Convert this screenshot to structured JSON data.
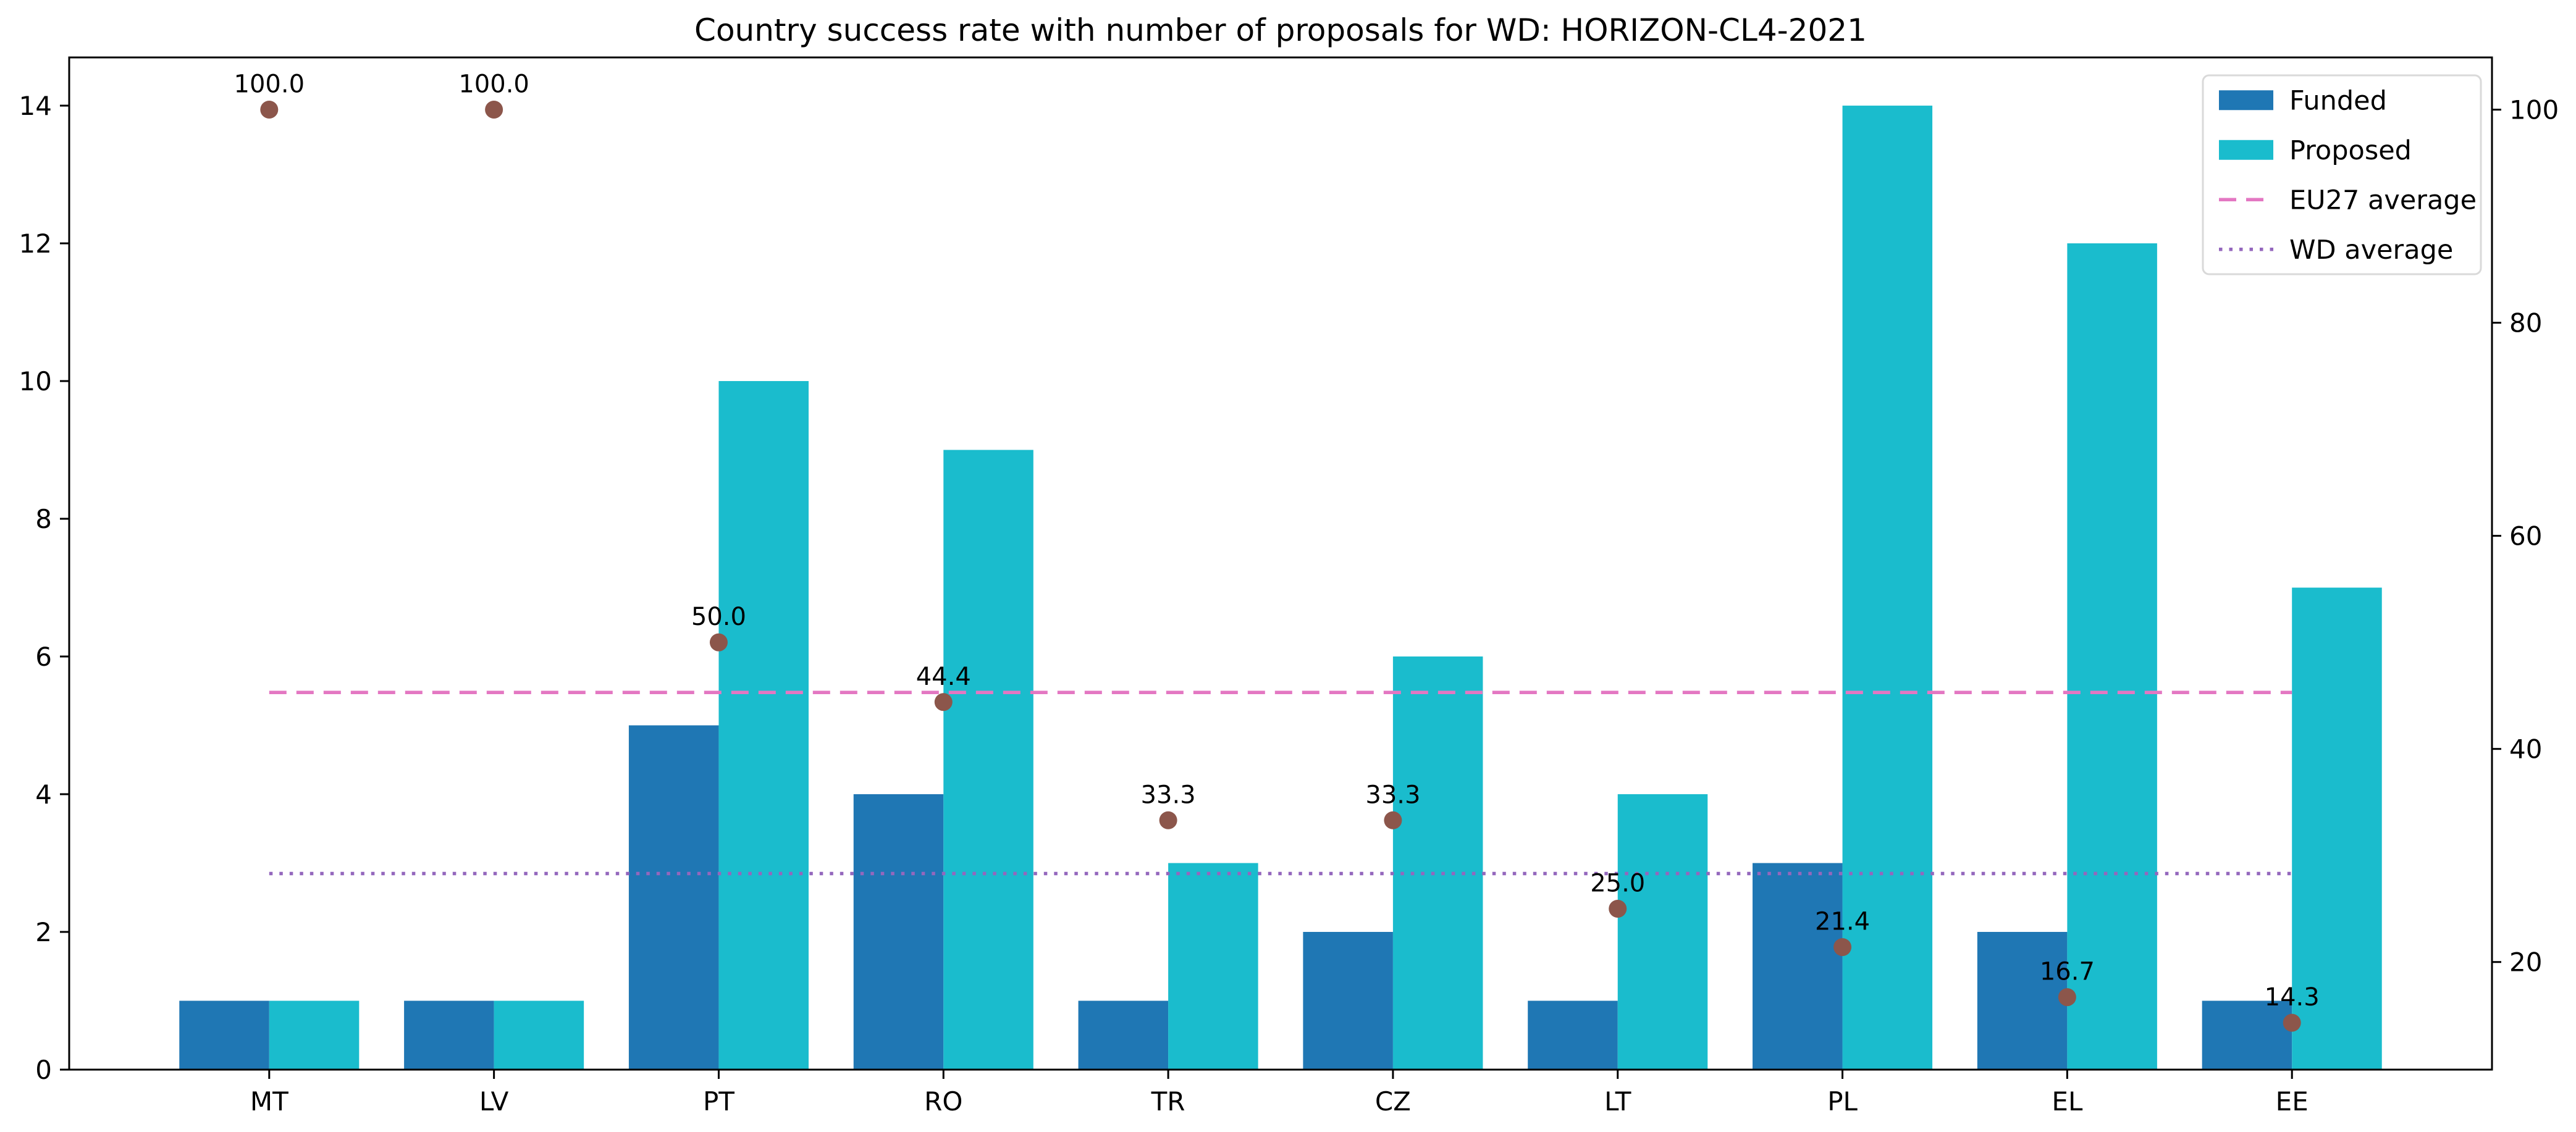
{
  "figure": {
    "title": "Country success rate with number of proposals for WD: HORIZON-CL4-2021"
  },
  "chart_data": {
    "type": "bar",
    "title": "Country success rate with number of proposals for WD: HORIZON-CL4-2021",
    "categories": [
      "MT",
      "LV",
      "PT",
      "RO",
      "TR",
      "CZ",
      "LT",
      "PL",
      "EL",
      "EE"
    ],
    "series": [
      {
        "name": "Funded",
        "color": "#1f77b4",
        "values": [
          1,
          1,
          5,
          4,
          1,
          2,
          1,
          3,
          2,
          1
        ]
      },
      {
        "name": "Proposed",
        "color": "#1abccd",
        "values": [
          1,
          1,
          10,
          9,
          3,
          6,
          4,
          14,
          12,
          7
        ]
      }
    ],
    "scatter": {
      "name": "success-rate",
      "color": "#8c564b",
      "values": [
        100.0,
        100.0,
        50.0,
        44.4,
        33.3,
        33.3,
        25.0,
        21.4,
        16.7,
        14.3
      ],
      "labels": [
        "100.0",
        "100.0",
        "50.0",
        "44.4",
        "33.3",
        "33.3",
        "25.0",
        "21.4",
        "16.7",
        "14.3"
      ]
    },
    "lines": [
      {
        "name": "EU27 average",
        "value": 45.3,
        "style": "dashed",
        "color": "#e377c2"
      },
      {
        "name": "WD average",
        "value": 28.3,
        "style": "dotted",
        "color": "#9467bd"
      }
    ],
    "left_axis": {
      "ticks": [
        0,
        2,
        4,
        6,
        8,
        10,
        12,
        14
      ],
      "ylim": [
        0,
        14.7
      ]
    },
    "right_axis": {
      "ticks": [
        20,
        40,
        60,
        80,
        100
      ],
      "ylim": [
        9.9,
        104.9
      ]
    },
    "legend": {
      "position": "upper right",
      "entries": [
        "Funded",
        "Proposed",
        "EU27 average",
        "WD average"
      ]
    },
    "xlabel": "",
    "ylabel": "",
    "grid": false
  }
}
